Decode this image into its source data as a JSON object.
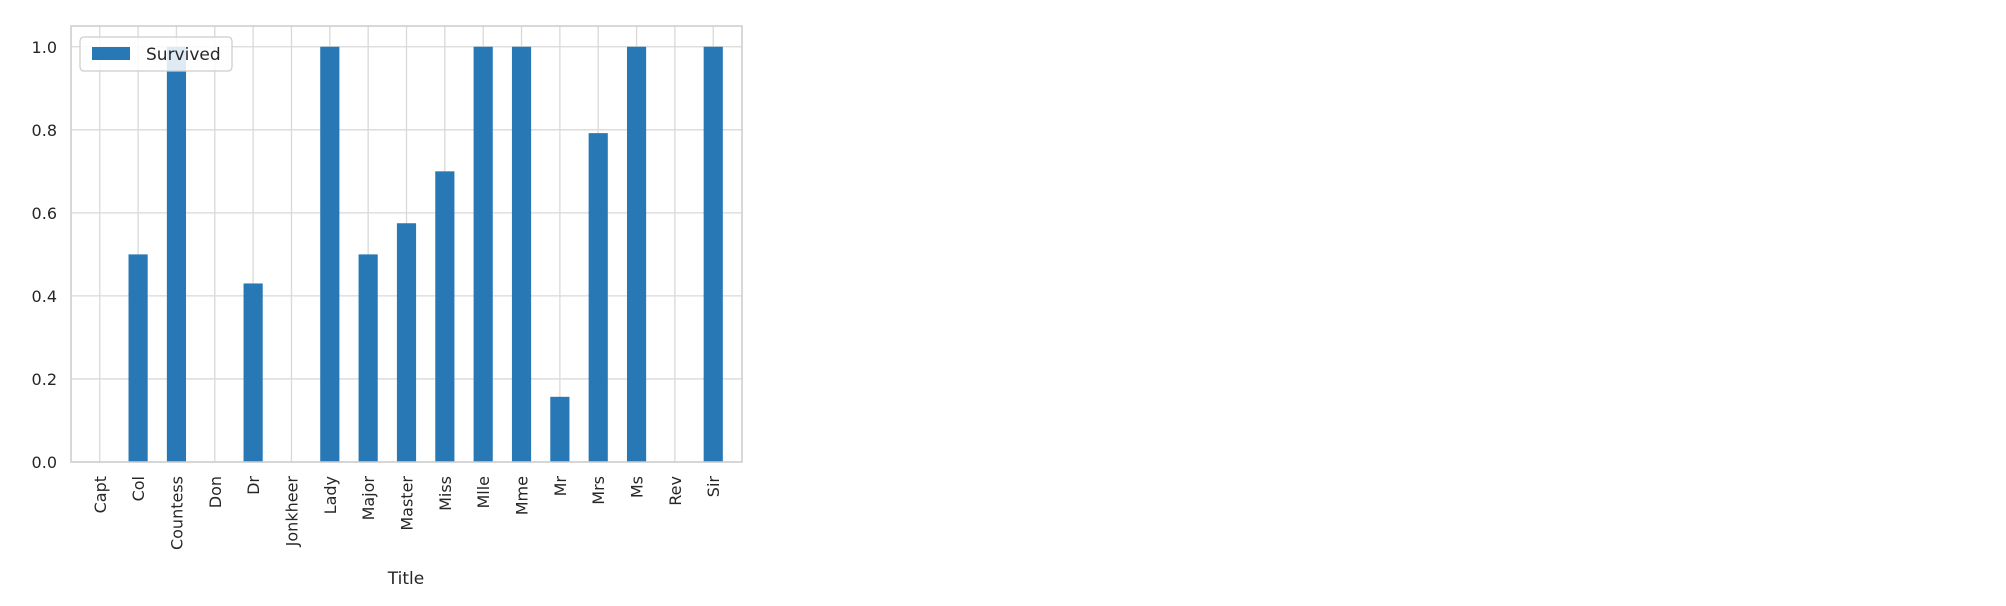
{
  "chart_data": {
    "type": "bar",
    "categories": [
      "Capt",
      "Col",
      "Countess",
      "Don",
      "Dr",
      "Jonkheer",
      "Lady",
      "Major",
      "Master",
      "Miss",
      "Mlle",
      "Mme",
      "Mr",
      "Mrs",
      "Ms",
      "Rev",
      "Sir"
    ],
    "series": [
      {
        "name": "Survived",
        "color": "#2878b5",
        "values": [
          0.0,
          0.5,
          1.0,
          0.0,
          0.43,
          0.0,
          1.0,
          0.5,
          0.575,
          0.7,
          1.0,
          1.0,
          0.157,
          0.792,
          1.0,
          0.0,
          1.0
        ]
      }
    ],
    "xlabel": "Title",
    "ylabel": "",
    "ylim": [
      0.0,
      1.05
    ],
    "yticks": [
      "0.0",
      "0.2",
      "0.4",
      "0.6",
      "0.8",
      "1.0"
    ],
    "ytick_values": [
      0.0,
      0.2,
      0.4,
      0.6,
      0.8,
      1.0
    ],
    "grid": true,
    "legend_position": "top-left"
  }
}
